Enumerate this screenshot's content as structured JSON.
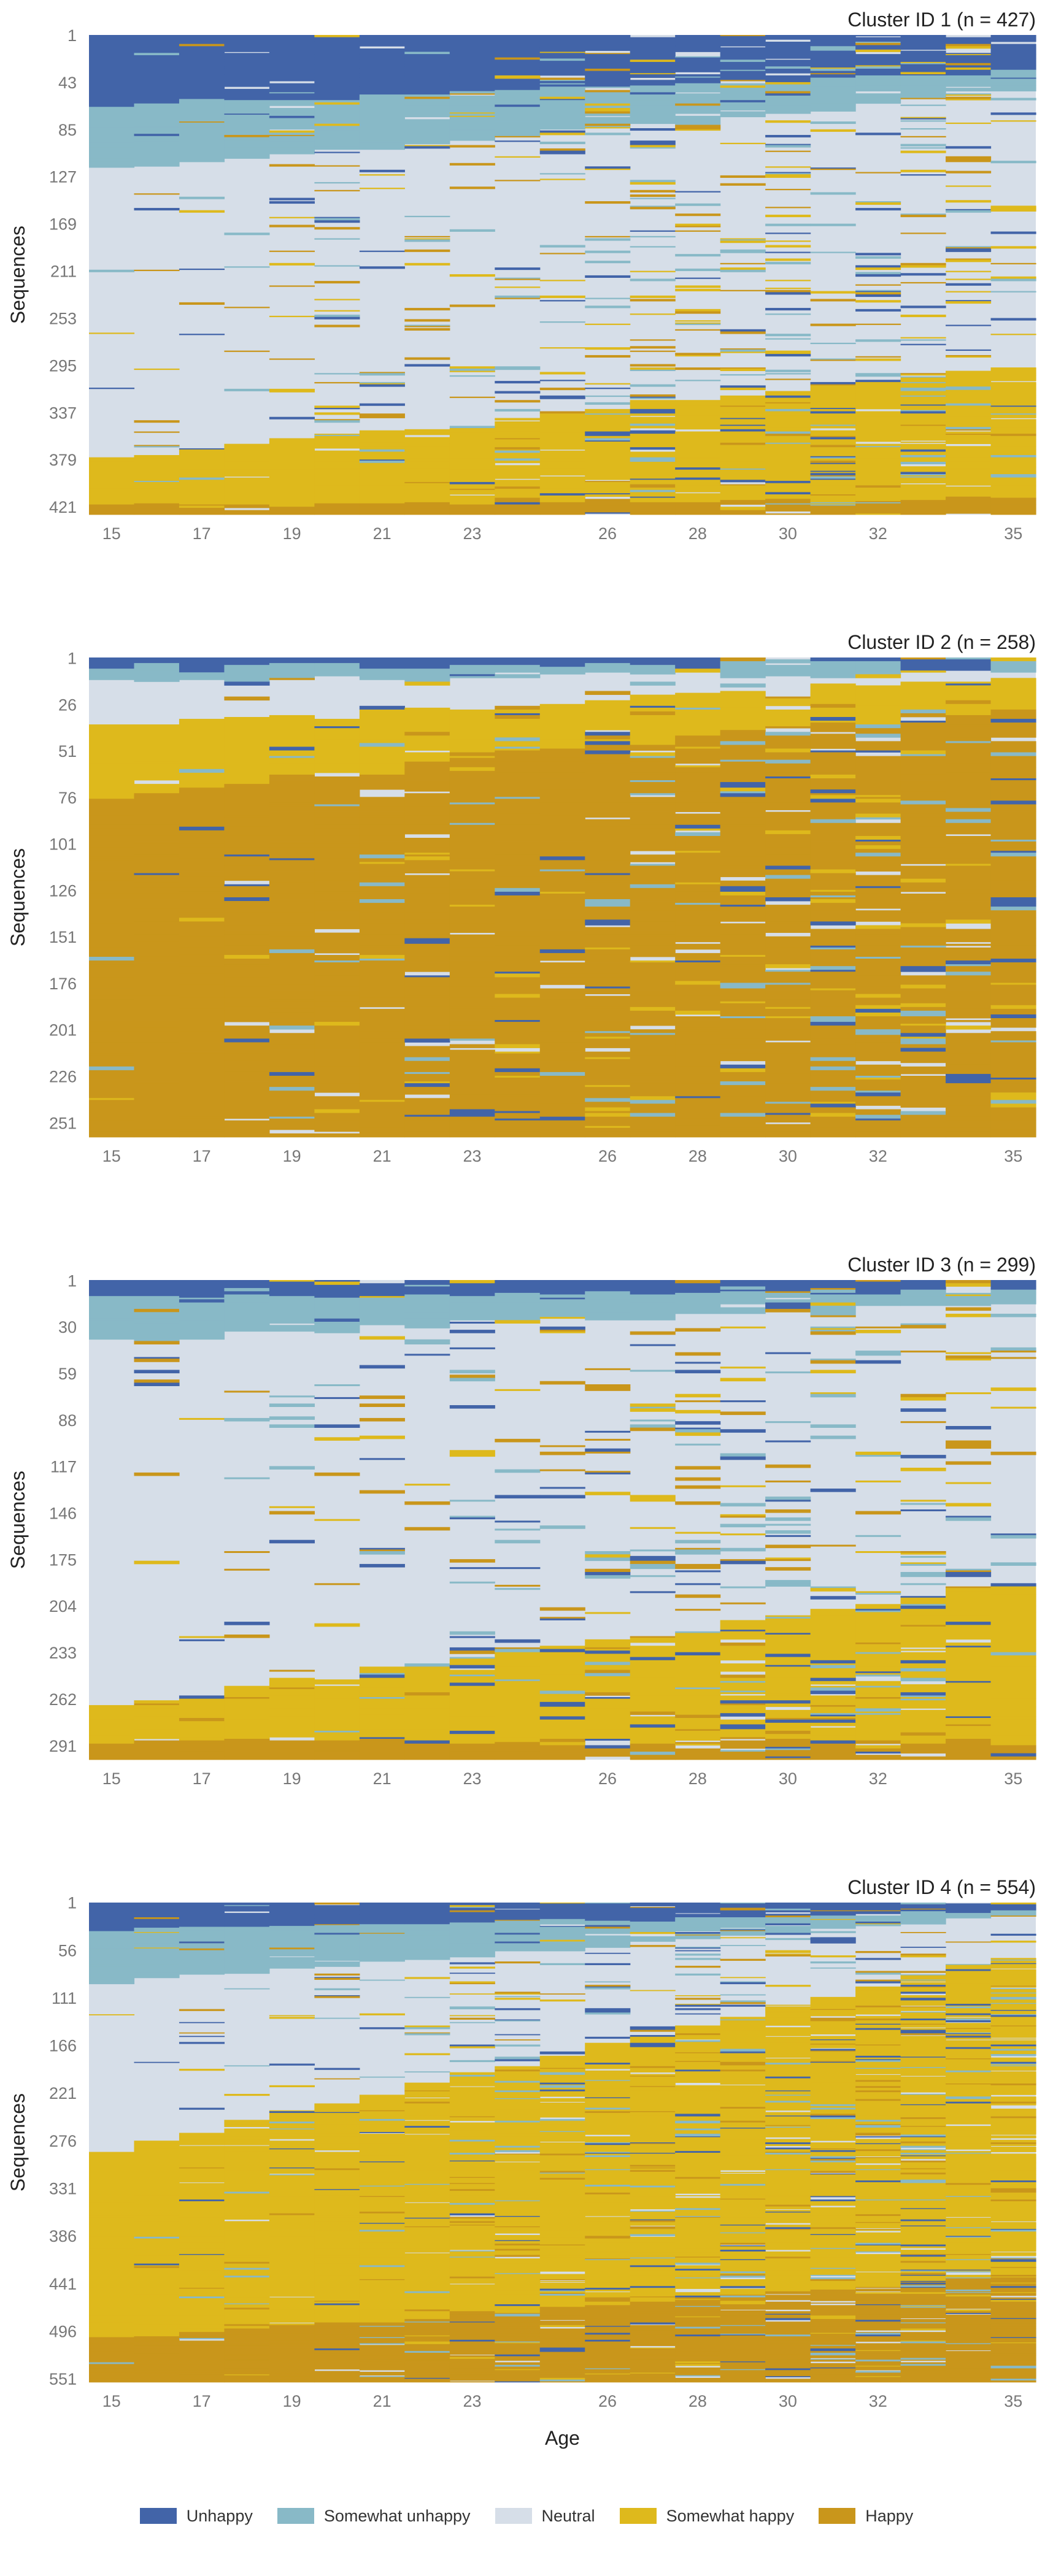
{
  "chart_data": {
    "type": "heatmap",
    "states": [
      {
        "name": "Unhappy",
        "color": "#4264a8"
      },
      {
        "name": "Somewhat unhappy",
        "color": "#88b9c7"
      },
      {
        "name": "Neutral",
        "color": "#d6dee8"
      },
      {
        "name": "Somewhat happy",
        "color": "#deb91c"
      },
      {
        "name": "Happy",
        "color": "#c9961b"
      }
    ],
    "x_ticks": [
      15,
      17,
      19,
      21,
      23,
      26,
      28,
      30,
      32,
      35
    ],
    "x_range": [
      14.5,
      35.5
    ],
    "xlabel": "Age",
    "ylabel": "Sequences",
    "legend_position": "bottom",
    "panels": [
      {
        "title": "Cluster ID 1 (n = 427)",
        "n": 427,
        "y_ticks": [
          "1",
          "43",
          "85",
          "127",
          "169",
          "211",
          "253",
          "295",
          "337",
          "379",
          "421"
        ],
        "blocks_at_age15": [
          {
            "state": "Unhappy",
            "from": 1,
            "to": 60
          },
          {
            "state": "Somewhat unhappy",
            "from": 61,
            "to": 118
          },
          {
            "state": "Neutral",
            "from": 119,
            "to": 375
          },
          {
            "state": "Somewhat happy",
            "from": 376,
            "to": 417
          },
          {
            "state": "Happy",
            "from": 418,
            "to": 427
          }
        ],
        "blocks_at_age35": [
          {
            "state": "Unhappy",
            "from": 1,
            "to": 30
          },
          {
            "state": "Somewhat unhappy",
            "from": 31,
            "to": 50
          },
          {
            "state": "Neutral",
            "from": 51,
            "to": 295
          },
          {
            "state": "Somewhat happy",
            "from": 296,
            "to": 410
          },
          {
            "state": "Happy",
            "from": 411,
            "to": 427
          }
        ]
      },
      {
        "title": "Cluster ID 2 (n = 258)",
        "n": 258,
        "y_ticks": [
          "1",
          "26",
          "51",
          "76",
          "101",
          "126",
          "151",
          "176",
          "201",
          "226",
          "251"
        ],
        "blocks_at_age15": [
          {
            "state": "Unhappy",
            "from": 1,
            "to": 3
          },
          {
            "state": "Somewhat unhappy",
            "from": 4,
            "to": 11
          },
          {
            "state": "Neutral",
            "from": 12,
            "to": 36
          },
          {
            "state": "Somewhat happy",
            "from": 37,
            "to": 73
          },
          {
            "state": "Happy",
            "from": 74,
            "to": 258
          }
        ],
        "blocks_at_age35": [
          {
            "state": "Unhappy",
            "from": 1,
            "to": 2
          },
          {
            "state": "Somewhat unhappy",
            "from": 3,
            "to": 5
          },
          {
            "state": "Neutral",
            "from": 6,
            "to": 10
          },
          {
            "state": "Somewhat happy",
            "from": 11,
            "to": 25
          },
          {
            "state": "Happy",
            "from": 26,
            "to": 258
          }
        ]
      },
      {
        "title": "Cluster ID 3 (n = 299)",
        "n": 299,
        "y_ticks": [
          "1",
          "30",
          "59",
          "88",
          "117",
          "146",
          "175",
          "204",
          "233",
          "262",
          "291"
        ],
        "blocks_at_age15": [
          {
            "state": "Unhappy",
            "from": 1,
            "to": 10
          },
          {
            "state": "Somewhat unhappy",
            "from": 11,
            "to": 35
          },
          {
            "state": "Neutral",
            "from": 36,
            "to": 263
          },
          {
            "state": "Somewhat happy",
            "from": 264,
            "to": 286
          },
          {
            "state": "Happy",
            "from": 287,
            "to": 299
          }
        ],
        "blocks_at_age35": [
          {
            "state": "Unhappy",
            "from": 1,
            "to": 6
          },
          {
            "state": "Somewhat unhappy",
            "from": 7,
            "to": 12
          },
          {
            "state": "Neutral",
            "from": 13,
            "to": 190
          },
          {
            "state": "Somewhat happy",
            "from": 191,
            "to": 285
          },
          {
            "state": "Happy",
            "from": 286,
            "to": 299
          }
        ]
      },
      {
        "title": "Cluster ID 4 (n = 554)",
        "n": 554,
        "y_ticks": [
          "1",
          "56",
          "111",
          "166",
          "221",
          "276",
          "331",
          "386",
          "441",
          "496",
          "551"
        ],
        "blocks_at_age15": [
          {
            "state": "Unhappy",
            "from": 1,
            "to": 30
          },
          {
            "state": "Somewhat unhappy",
            "from": 31,
            "to": 90
          },
          {
            "state": "Neutral",
            "from": 91,
            "to": 285
          },
          {
            "state": "Somewhat happy",
            "from": 286,
            "to": 502
          },
          {
            "state": "Happy",
            "from": 503,
            "to": 554
          }
        ],
        "blocks_at_age35": [
          {
            "state": "Unhappy",
            "from": 1,
            "to": 8
          },
          {
            "state": "Somewhat unhappy",
            "from": 9,
            "to": 15
          },
          {
            "state": "Neutral",
            "from": 16,
            "to": 60
          },
          {
            "state": "Somewhat happy",
            "from": 61,
            "to": 430
          },
          {
            "state": "Happy",
            "from": 431,
            "to": 554
          }
        ]
      }
    ]
  }
}
